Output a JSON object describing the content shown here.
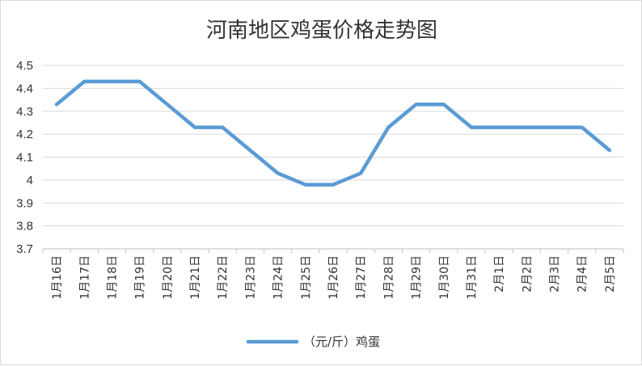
{
  "chart_data": {
    "type": "line",
    "title": "河南地区鸡蛋价格走势图",
    "xlabel": "",
    "ylabel": "",
    "categories": [
      "1月16日",
      "1月17日",
      "1月18日",
      "1月19日",
      "1月20日",
      "1月21日",
      "1月22日",
      "1月23日",
      "1月24日",
      "1月25日",
      "1月26日",
      "1月27日",
      "1月28日",
      "1月29日",
      "1月30日",
      "1月31日",
      "2月1日",
      "2月2日",
      "2月3日",
      "2月4日",
      "2月5日"
    ],
    "series": [
      {
        "name": "（元/斤）鸡蛋",
        "color": "#5b9bd5",
        "values": [
          4.33,
          4.43,
          4.43,
          4.43,
          4.33,
          4.23,
          4.23,
          4.13,
          4.03,
          3.98,
          3.98,
          4.03,
          4.23,
          4.33,
          4.33,
          4.23,
          4.23,
          4.23,
          4.23,
          4.23,
          4.13
        ]
      }
    ],
    "ylim": [
      3.7,
      4.5
    ],
    "yticks": [
      "3.7",
      "3.8",
      "3.9",
      "4",
      "4.1",
      "4.2",
      "4.3",
      "4.4",
      "4.5"
    ],
    "grid": true,
    "legend_position": "bottom"
  }
}
